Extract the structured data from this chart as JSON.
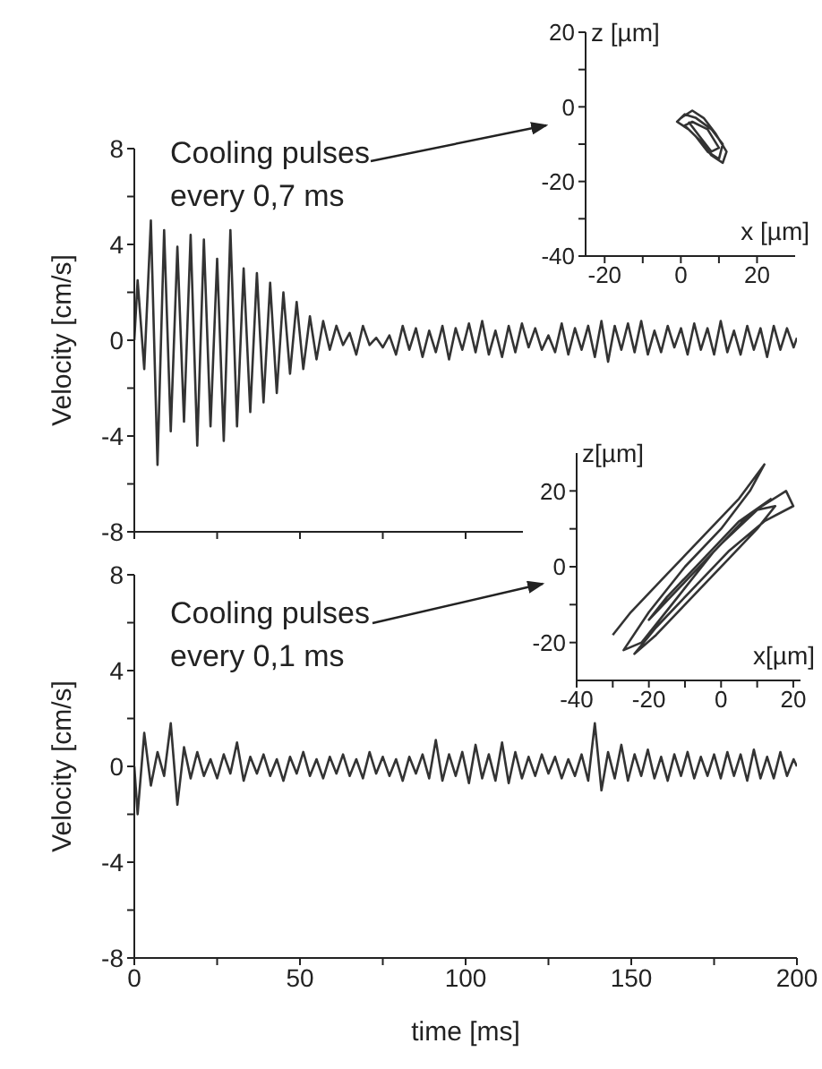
{
  "chart_data": [
    {
      "type": "line",
      "ylabel": "Velocity [cm/s]",
      "annotations": [
        "Cooling pulses every 0,7 ms"
      ],
      "x": [
        0,
        1,
        3,
        5,
        7,
        9,
        11,
        13,
        15,
        17,
        19,
        21,
        23,
        25,
        27,
        29,
        31,
        33,
        35,
        37,
        39,
        41,
        43,
        45,
        47,
        49,
        51,
        53,
        55,
        57,
        59,
        61,
        63,
        65,
        67,
        69,
        71,
        73,
        75,
        77,
        79,
        81,
        83,
        85,
        87,
        89,
        91,
        93,
        95,
        97,
        99,
        101,
        103,
        105,
        107,
        109,
        111,
        113,
        115,
        117,
        119,
        121,
        123,
        125,
        127,
        129,
        131,
        133,
        135,
        137,
        139,
        141,
        143,
        145,
        147,
        149,
        151,
        153,
        155,
        157,
        159,
        161,
        163,
        165,
        167,
        169,
        171,
        173,
        175,
        177,
        179,
        181,
        183,
        185,
        187,
        189,
        191,
        193,
        195,
        197,
        199,
        200
      ],
      "series": [
        {
          "color": "#333333",
          "values": [
            0,
            2.5,
            -1.2,
            5.0,
            -5.2,
            4.6,
            -3.8,
            3.9,
            -3.4,
            4.4,
            -4.4,
            4.2,
            -3.6,
            3.4,
            -4.2,
            4.6,
            -3.6,
            3.0,
            -3.0,
            2.8,
            -2.6,
            2.4,
            -2.2,
            2.0,
            -1.4,
            1.6,
            -1.2,
            1.0,
            -0.8,
            0.8,
            -0.4,
            0.6,
            -0.2,
            0.3,
            -0.6,
            0.6,
            -0.2,
            0.1,
            -0.3,
            0.2,
            -0.6,
            0.6,
            -0.4,
            0.5,
            -0.7,
            0.4,
            -0.5,
            0.6,
            -0.8,
            0.5,
            -0.4,
            0.7,
            -0.5,
            0.8,
            -0.6,
            0.4,
            -0.7,
            0.6,
            -0.5,
            0.7,
            -0.3,
            0.5,
            -0.4,
            0.2,
            -0.5,
            0.7,
            -0.6,
            0.5,
            -0.4,
            0.6,
            -0.7,
            0.8,
            -0.9,
            0.6,
            -0.4,
            0.7,
            -0.5,
            0.8,
            -0.6,
            0.4,
            -0.5,
            0.6,
            -0.3,
            0.5,
            -0.6,
            0.7,
            -0.4,
            0.5,
            -0.6,
            0.8,
            -0.5,
            0.4,
            -0.6,
            0.6,
            -0.4,
            0.5,
            -0.7,
            0.6,
            -0.4,
            0.5,
            -0.3,
            0.1
          ]
        }
      ],
      "xlim": [
        0,
        200
      ],
      "xticks": [
        0,
        {
          "value": 25,
          "label": null
        },
        50,
        {
          "value": 75,
          "label": null
        },
        100,
        {
          "value": 125,
          "label": null
        },
        150,
        {
          "value": 175,
          "label": null
        },
        200
      ],
      "ylim": [
        -8,
        8
      ],
      "yticks": [
        -8,
        {
          "value": -6,
          "label": null
        },
        -4,
        {
          "value": -2,
          "label": null
        },
        0,
        {
          "value": 2,
          "label": null
        },
        4,
        {
          "value": 6,
          "label": null
        },
        8
      ],
      "tick_labels": "y"
    },
    {
      "type": "line",
      "xlabel": "x [µm]",
      "ylabel": "z [µm]",
      "series": [
        {
          "color": "#333333",
          "x": [
            0,
            3,
            6,
            9,
            12,
            11,
            8,
            5,
            2,
            -1,
            1,
            4,
            8,
            11,
            10,
            7,
            4,
            1,
            3,
            7,
            10,
            8,
            5,
            2
          ],
          "values": [
            -3,
            -1,
            -3,
            -7,
            -12,
            -15,
            -13,
            -9,
            -6,
            -4,
            -2,
            -3,
            -6,
            -10,
            -14,
            -12,
            -8,
            -5,
            -4,
            -6,
            -11,
            -12,
            -8,
            -4
          ]
        }
      ],
      "xlim": [
        -25,
        30
      ],
      "xticks": [
        -20,
        {
          "value": -10,
          "label": null
        },
        0,
        {
          "value": 10,
          "label": null
        },
        20
      ],
      "ylim": [
        -40,
        20
      ],
      "yticks": [
        -40,
        {
          "value": -30,
          "label": null
        },
        -20,
        {
          "value": -10,
          "label": null
        },
        0,
        {
          "value": 10,
          "label": null
        },
        20
      ]
    },
    {
      "type": "line",
      "ylabel": "Velocity [cm/s]",
      "xlabel": "time [ms]",
      "annotations": [
        "Cooling pulses every 0,1 ms"
      ],
      "x": [
        0,
        1,
        3,
        5,
        7,
        9,
        11,
        13,
        15,
        17,
        19,
        21,
        23,
        25,
        27,
        29,
        31,
        33,
        35,
        37,
        39,
        41,
        43,
        45,
        47,
        49,
        51,
        53,
        55,
        57,
        59,
        61,
        63,
        65,
        67,
        69,
        71,
        73,
        75,
        77,
        79,
        81,
        83,
        85,
        87,
        89,
        91,
        93,
        95,
        97,
        99,
        101,
        103,
        105,
        107,
        109,
        111,
        113,
        115,
        117,
        119,
        121,
        123,
        125,
        127,
        129,
        131,
        133,
        135,
        137,
        139,
        141,
        143,
        145,
        147,
        149,
        151,
        153,
        155,
        157,
        159,
        161,
        163,
        165,
        167,
        169,
        171,
        173,
        175,
        177,
        179,
        181,
        183,
        185,
        187,
        189,
        191,
        193,
        195,
        197,
        199,
        200
      ],
      "series": [
        {
          "color": "#333333",
          "values": [
            0,
            -2.0,
            1.4,
            -0.8,
            0.6,
            -0.4,
            1.8,
            -1.6,
            0.8,
            -0.5,
            0.6,
            -0.4,
            0.3,
            -0.5,
            0.5,
            -0.3,
            1.0,
            -0.6,
            0.4,
            -0.3,
            0.5,
            -0.4,
            0.3,
            -0.6,
            0.4,
            -0.3,
            0.6,
            -0.4,
            0.3,
            -0.5,
            0.4,
            -0.3,
            0.5,
            -0.4,
            0.3,
            -0.5,
            0.6,
            -0.3,
            0.4,
            -0.4,
            0.3,
            -0.6,
            0.4,
            -0.3,
            0.5,
            -0.5,
            1.1,
            -0.6,
            0.5,
            -0.4,
            0.6,
            -0.7,
            0.9,
            -0.5,
            0.5,
            -0.6,
            1.0,
            -0.7,
            0.6,
            -0.5,
            0.4,
            -0.4,
            0.5,
            -0.3,
            0.4,
            -0.5,
            0.3,
            -0.4,
            0.5,
            -0.6,
            1.8,
            -1.0,
            0.6,
            -0.5,
            0.9,
            -0.6,
            0.5,
            -0.4,
            0.7,
            -0.5,
            0.4,
            -0.6,
            0.5,
            -0.4,
            0.6,
            -0.5,
            0.4,
            -0.4,
            0.5,
            -0.5,
            0.6,
            -0.4,
            0.5,
            -0.6,
            0.7,
            -0.5,
            0.4,
            -0.5,
            0.6,
            -0.4,
            0.3,
            0
          ]
        }
      ],
      "xlim": [
        0,
        200
      ],
      "xticks": [
        0,
        {
          "value": 25,
          "label": null
        },
        50,
        {
          "value": 75,
          "label": null
        },
        100,
        {
          "value": 125,
          "label": null
        },
        150,
        {
          "value": 175,
          "label": null
        },
        200
      ],
      "ylim": [
        -8,
        8
      ],
      "yticks": [
        -8,
        {
          "value": -6,
          "label": null
        },
        -4,
        {
          "value": -2,
          "label": null
        },
        0,
        {
          "value": 2,
          "label": null
        },
        4,
        {
          "value": 6,
          "label": null
        },
        8
      ]
    },
    {
      "type": "line",
      "xlabel": "x[µm]",
      "ylabel": "z[µm]",
      "series": [
        {
          "color": "#333333",
          "x": [
            -30,
            -25,
            -15,
            -5,
            5,
            12,
            8,
            0,
            -10,
            -20,
            -27,
            -22,
            -12,
            -2,
            8,
            18,
            20,
            12,
            2,
            -8,
            -18,
            -24,
            -18,
            -8,
            2,
            10,
            15,
            10,
            0,
            -10,
            -20,
            -15,
            -5,
            5,
            14
          ],
          "values": [
            -18,
            -12,
            -2,
            8,
            18,
            27,
            20,
            10,
            0,
            -12,
            -22,
            -20,
            -8,
            4,
            14,
            20,
            16,
            12,
            4,
            -6,
            -16,
            -23,
            -18,
            -8,
            2,
            10,
            16,
            15,
            6,
            -4,
            -14,
            -8,
            2,
            12,
            18
          ]
        }
      ],
      "xlim": [
        -40,
        22
      ],
      "xticks": [
        -40,
        {
          "value": -30,
          "label": null
        },
        -20,
        {
          "value": -10,
          "label": null
        },
        0,
        {
          "value": 10,
          "label": null
        },
        20
      ],
      "ylim": [
        -30,
        30
      ],
      "yticks": [
        -20,
        {
          "value": -10,
          "label": null
        },
        0,
        {
          "value": 10,
          "label": null
        },
        20
      ]
    }
  ]
}
